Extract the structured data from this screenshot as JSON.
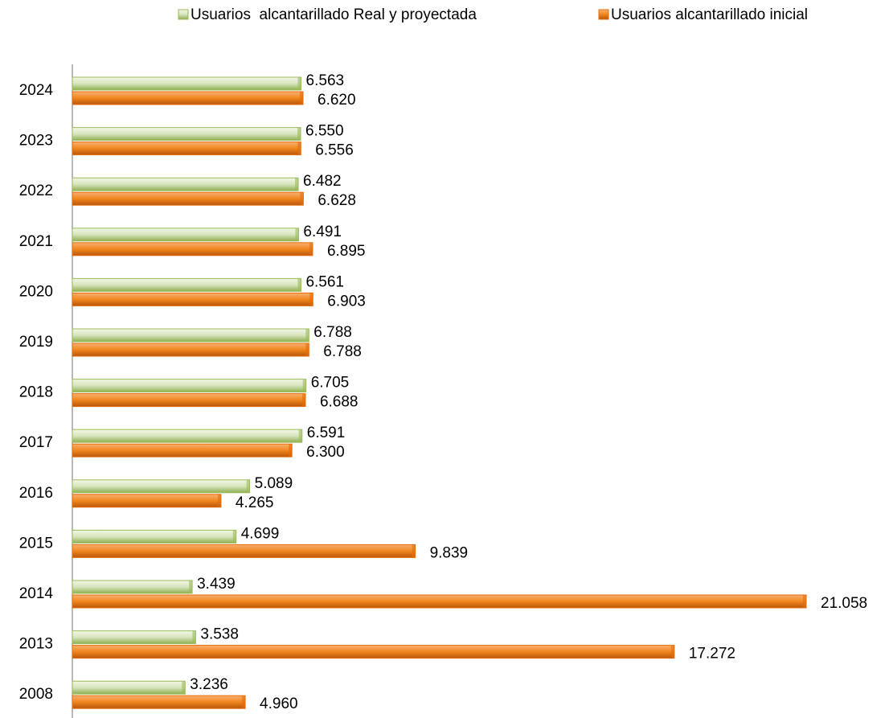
{
  "chart_data": {
    "type": "hbar",
    "categories": [
      "2024",
      "2023",
      "2022",
      "2021",
      "2020",
      "2019",
      "2018",
      "2017",
      "2016",
      "2015",
      "2014",
      "2013",
      "2008"
    ],
    "series": [
      {
        "name": "Usuarios  alcantarillado Real y proyectada",
        "color": "#9bbb59",
        "values": [
          6563,
          6550,
          6482,
          6491,
          6561,
          6788,
          6705,
          6591,
          5089,
          4699,
          3439,
          3538,
          3236
        ],
        "value_labels": [
          "6.563",
          "6.550",
          "6.482",
          "6.491",
          "6.561",
          "6.788",
          "6.705",
          "6.591",
          "5.089",
          "4.699",
          "3.439",
          "3.538",
          "3.236"
        ]
      },
      {
        "name": "Usuarios alcantarillado inicial",
        "color": "#e46c0a",
        "values": [
          6620,
          6556,
          6628,
          6895,
          6903,
          6788,
          6688,
          6300,
          4265,
          9839,
          21058,
          17272,
          4960
        ],
        "value_labels": [
          "6.620",
          "6.556",
          "6.628",
          "6.895",
          "6.903",
          "6.788",
          "6.688",
          "6.300",
          "4.265",
          "9.839",
          "21.058",
          "17.272",
          "4.960"
        ]
      }
    ],
    "legend": "top"
  }
}
